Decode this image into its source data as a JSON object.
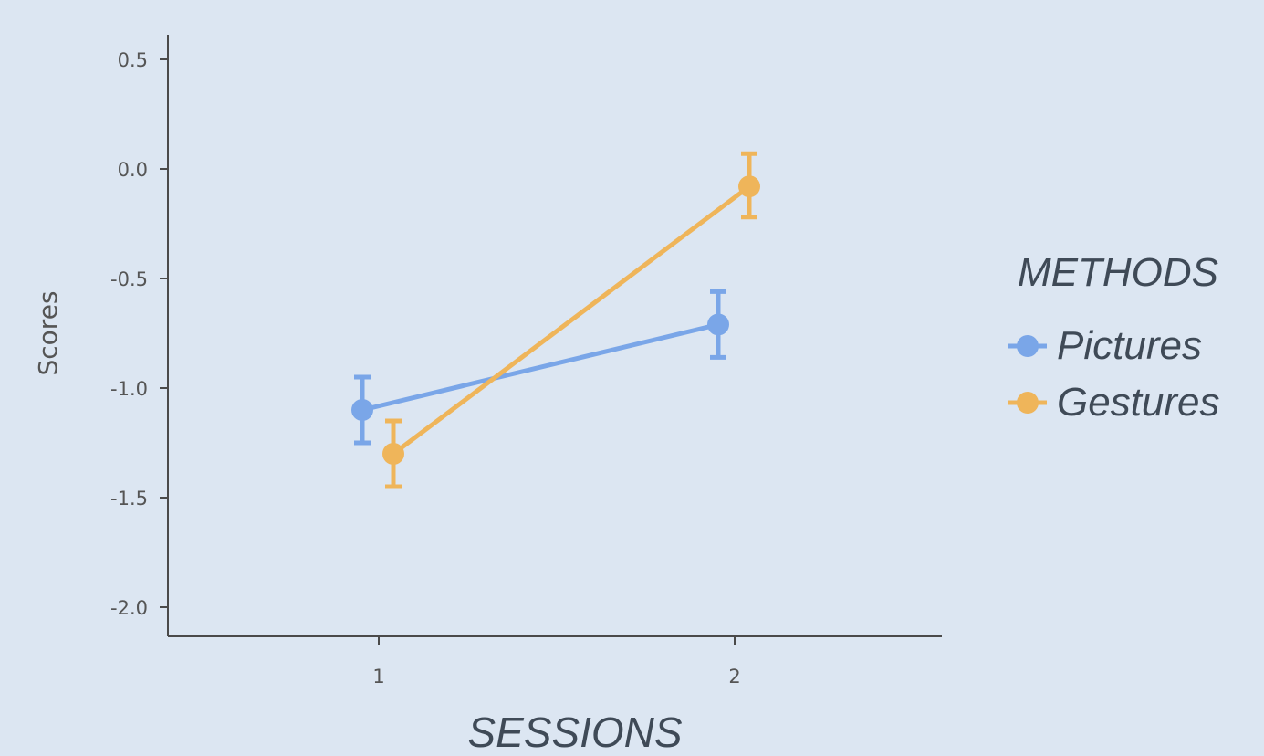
{
  "chart_data": {
    "type": "line",
    "xlabel": "SESSIONS",
    "ylabel": "Scores",
    "categories": [
      "1",
      "2"
    ],
    "ylim": [
      -2.0,
      0.5
    ],
    "yticks": [
      "0.5",
      "0.0",
      "-0.5",
      "-1.0",
      "-1.5",
      "-2.0"
    ],
    "ytick_values": [
      0.5,
      0.0,
      -0.5,
      -1.0,
      -1.5,
      -2.0
    ],
    "grid": false,
    "legend": {
      "title": "METHODS",
      "placement": "right"
    },
    "series": [
      {
        "name": "Pictures",
        "color": "#7aa6e8",
        "values": [
          -1.1,
          -0.71
        ],
        "err_low": [
          -1.25,
          -0.86
        ],
        "err_high": [
          -0.95,
          -0.56
        ]
      },
      {
        "name": "Gestures",
        "color": "#efb55a",
        "values": [
          -1.3,
          -0.08
        ],
        "err_low": [
          -1.45,
          -0.22
        ],
        "err_high": [
          -1.15,
          0.07
        ]
      }
    ]
  }
}
